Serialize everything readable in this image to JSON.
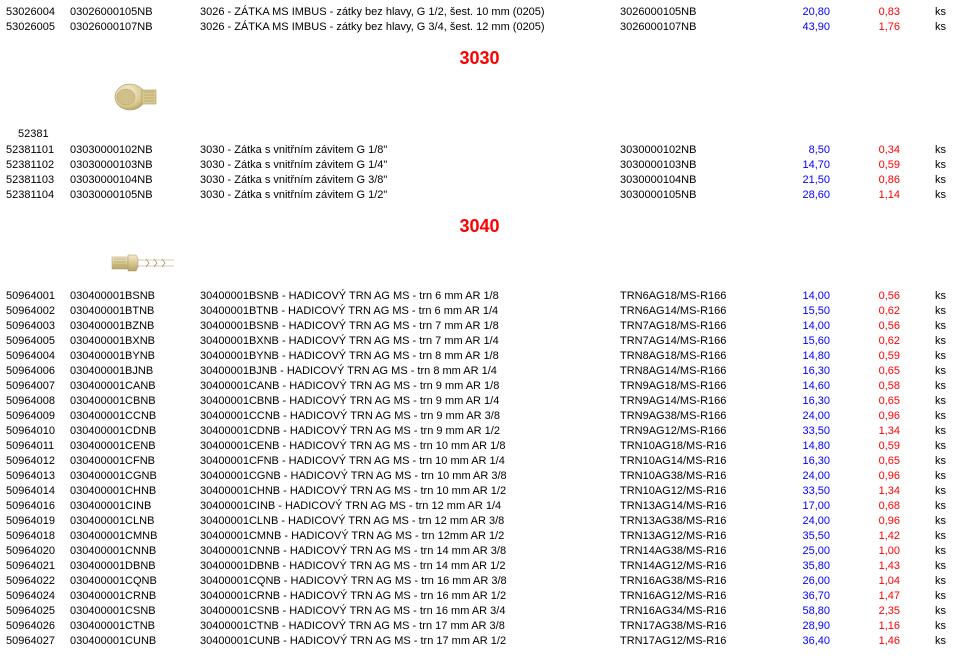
{
  "top": [
    {
      "a": "53026004",
      "b": "03026000105NB",
      "c": "3026 - ZÁTKA MS IMBUS - zátky bez hlavy, G 1/2, šest. 10 mm (0205)",
      "d": "3026000105NB",
      "e": "20,80",
      "f": "0,83",
      "g": "ks"
    },
    {
      "a": "53026005",
      "b": "03026000107NB",
      "c": "3026 - ZÁTKA MS IMBUS - zátky bez hlavy, G 3/4, šest. 12 mm (0205)",
      "d": "3026000107NB",
      "e": "43,90",
      "f": "1,76",
      "g": "ks"
    }
  ],
  "sec3030": {
    "title": "3030",
    "group": "52381",
    "rows": [
      {
        "a": "52381101",
        "b": "03030000102NB",
        "c": "3030 - Zátka s vnitřním závitem G 1/8\"",
        "d": "3030000102NB",
        "e": "8,50",
        "f": "0,34",
        "g": "ks"
      },
      {
        "a": "52381102",
        "b": "03030000103NB",
        "c": "3030 - Zátka s vnitřním závitem G 1/4\"",
        "d": "3030000103NB",
        "e": "14,70",
        "f": "0,59",
        "g": "ks"
      },
      {
        "a": "52381103",
        "b": "03030000104NB",
        "c": "3030 - Zátka s vnitřním závitem G 3/8\"",
        "d": "3030000104NB",
        "e": "21,50",
        "f": "0,86",
        "g": "ks"
      },
      {
        "a": "52381104",
        "b": "03030000105NB",
        "c": "3030 - Zátka s vnitřním závitem G 1/2\"",
        "d": "3030000105NB",
        "e": "28,60",
        "f": "1,14",
        "g": "ks"
      }
    ]
  },
  "sec3040": {
    "title": "3040",
    "rows": [
      {
        "a": "50964001",
        "b": "030400001BSNB",
        "c": "30400001BSNB - HADICOVÝ TRN AG MS - trn 6 mm AR 1/8",
        "d": "TRN6AG18/MS-R166",
        "e": "14,00",
        "f": "0,56",
        "g": "ks"
      },
      {
        "a": "50964002",
        "b": "030400001BTNB",
        "c": "30400001BTNB - HADICOVÝ TRN AG MS - trn 6 mm AR 1/4",
        "d": "TRN6AG14/MS-R166",
        "e": "15,50",
        "f": "0,62",
        "g": "ks"
      },
      {
        "a": "50964003",
        "b": "030400001BZNB",
        "c": "30400001BSNB - HADICOVÝ TRN AG MS - trn 7 mm AR 1/8",
        "d": "TRN7AG18/MS-R166",
        "e": "14,00",
        "f": "0,56",
        "g": "ks"
      },
      {
        "a": "50964005",
        "b": "030400001BXNB",
        "c": "30400001BXNB - HADICOVÝ TRN AG MS - trn 7 mm AR 1/4",
        "d": "TRN7AG14/MS-R166",
        "e": "15,60",
        "f": "0,62",
        "g": "ks"
      },
      {
        "a": "50964004",
        "b": "030400001BYNB",
        "c": "30400001BYNB - HADICOVÝ TRN AG MS - trn 8 mm AR 1/8",
        "d": "TRN8AG18/MS-R166",
        "e": "14,80",
        "f": "0,59",
        "g": "ks"
      },
      {
        "a": "50964006",
        "b": "030400001BJNB",
        "c": "30400001BJNB - HADICOVÝ TRN AG MS - trn 8 mm AR 1/4",
        "d": "TRN8AG14/MS-R166",
        "e": "16,30",
        "f": "0,65",
        "g": "ks"
      },
      {
        "a": "50964007",
        "b": "030400001CANB",
        "c": "30400001CANB - HADICOVÝ TRN AG MS - trn 9 mm AR 1/8",
        "d": "TRN9AG18/MS-R166",
        "e": "14,60",
        "f": "0,58",
        "g": "ks"
      },
      {
        "a": "50964008",
        "b": "030400001CBNB",
        "c": "30400001CBNB - HADICOVÝ TRN AG MS - trn 9 mm AR 1/4",
        "d": "TRN9AG14/MS-R166",
        "e": "16,30",
        "f": "0,65",
        "g": "ks"
      },
      {
        "a": "50964009",
        "b": "030400001CCNB",
        "c": "30400001CCNB - HADICOVÝ TRN AG MS - trn 9 mm AR 3/8",
        "d": "TRN9AG38/MS-R166",
        "e": "24,00",
        "f": "0,96",
        "g": "ks"
      },
      {
        "a": "50964010",
        "b": "030400001CDNB",
        "c": "30400001CDNB - HADICOVÝ TRN AG MS - trn 9 mm AR 1/2",
        "d": "TRN9AG12/MS-R166",
        "e": "33,50",
        "f": "1,34",
        "g": "ks"
      },
      {
        "a": "50964011",
        "b": "030400001CENB",
        "c": "30400001CENB - HADICOVÝ TRN AG MS - trn 10 mm AR 1/8",
        "d": "TRN10AG18/MS-R16",
        "e": "14,80",
        "f": "0,59",
        "g": "ks"
      },
      {
        "a": "50964012",
        "b": "030400001CFNB",
        "c": "30400001CFNB - HADICOVÝ TRN AG MS - trn 10 mm AR 1/4",
        "d": "TRN10AG14/MS-R16",
        "e": "16,30",
        "f": "0,65",
        "g": "ks"
      },
      {
        "a": "50964013",
        "b": "030400001CGNB",
        "c": "30400001CGNB - HADICOVÝ TRN AG MS - trn 10 mm AR 3/8",
        "d": "TRN10AG38/MS-R16",
        "e": "24,00",
        "f": "0,96",
        "g": "ks"
      },
      {
        "a": "50964014",
        "b": "030400001CHNB",
        "c": "30400001CHNB - HADICOVÝ TRN AG MS - trn 10 mm AR 1/2",
        "d": "TRN10AG12/MS-R16",
        "e": "33,50",
        "f": "1,34",
        "g": "ks"
      },
      {
        "a": "50964016",
        "b": "030400001CINB",
        "c": "30400001CINB - HADICOVÝ TRN AG MS - trn 12 mm AR 1/4",
        "d": "TRN13AG14/MS-R16",
        "e": "17,00",
        "f": "0,68",
        "g": "ks"
      },
      {
        "a": "50964019",
        "b": "030400001CLNB",
        "c": "30400001CLNB - HADICOVÝ TRN AG MS - trn 12 mm AR 3/8",
        "d": "TRN13AG38/MS-R16",
        "e": "24,00",
        "f": "0,96",
        "g": "ks"
      },
      {
        "a": "50964018",
        "b": "030400001CMNB",
        "c": "30400001CMNB - HADICOVÝ TRN AG MS - trn 12mm AR 1/2",
        "d": "TRN13AG12/MS-R16",
        "e": "35,50",
        "f": "1,42",
        "g": "ks"
      },
      {
        "a": "50964020",
        "b": "030400001CNNB",
        "c": "30400001CNNB - HADICOVÝ TRN AG MS - trn 14 mm AR 3/8",
        "d": "TRN14AG38/MS-R16",
        "e": "25,00",
        "f": "1,00",
        "g": "ks"
      },
      {
        "a": "50964021",
        "b": "030400001DBNB",
        "c": "30400001DBNB - HADICOVÝ TRN AG MS - trn 14 mm AR 1/2",
        "d": "TRN14AG12/MS-R16",
        "e": "35,80",
        "f": "1,43",
        "g": "ks"
      },
      {
        "a": "50964022",
        "b": "030400001CQNB",
        "c": "30400001CQNB - HADICOVÝ TRN AG MS - trn 16 mm AR 3/8",
        "d": "TRN16AG38/MS-R16",
        "e": "26,00",
        "f": "1,04",
        "g": "ks"
      },
      {
        "a": "50964024",
        "b": "030400001CRNB",
        "c": "30400001CRNB - HADICOVÝ TRN AG MS - trn 16 mm AR 1/2",
        "d": "TRN16AG12/MS-R16",
        "e": "36,70",
        "f": "1,47",
        "g": "ks"
      },
      {
        "a": "50964025",
        "b": "030400001CSNB",
        "c": "30400001CSNB - HADICOVÝ TRN AG MS - trn 16 mm AR 3/4",
        "d": "TRN16AG34/MS-R16",
        "e": "58,80",
        "f": "2,35",
        "g": "ks"
      },
      {
        "a": "50964026",
        "b": "030400001CTNB",
        "c": "30400001CTNB - HADICOVÝ TRN AG MS - trn 17 mm AR 3/8",
        "d": "TRN17AG38/MS-R16",
        "e": "28,90",
        "f": "1,16",
        "g": "ks"
      },
      {
        "a": "50964027",
        "b": "030400001CUNB",
        "c": "30400001CUNB - HADICOVÝ TRN AG MS - trn 17 mm AR 1/2",
        "d": "TRN17AG12/MS-R16",
        "e": "36,40",
        "f": "1,46",
        "g": "ks"
      }
    ]
  }
}
